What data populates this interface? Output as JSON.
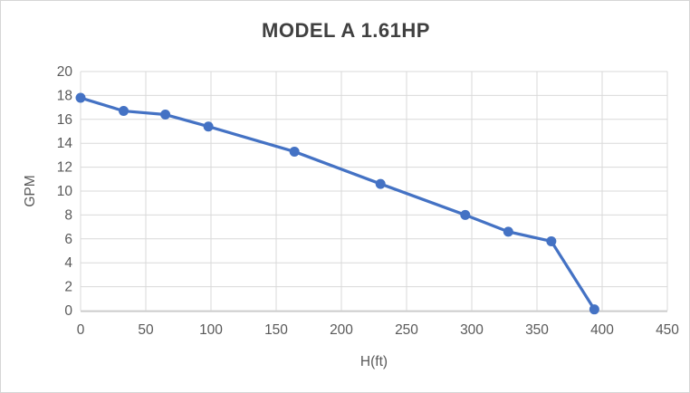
{
  "chart_data": {
    "type": "line",
    "title": "MODEL A 1.61HP",
    "xlabel": "H(ft)",
    "ylabel": "GPM",
    "series": [
      {
        "name": "MODEL A 1.61HP",
        "x": [
          0,
          33,
          65,
          98,
          164,
          230,
          295,
          328,
          361,
          394
        ],
        "y": [
          17.8,
          16.7,
          16.4,
          15.4,
          13.3,
          10.6,
          8.0,
          6.6,
          5.8,
          0.1
        ]
      }
    ],
    "xlim": [
      0,
      450
    ],
    "ylim": [
      0,
      20
    ],
    "x_ticks": [
      0,
      50,
      100,
      150,
      200,
      250,
      300,
      350,
      400,
      450
    ],
    "y_ticks": [
      0,
      2,
      4,
      6,
      8,
      10,
      12,
      14,
      16,
      18,
      20
    ],
    "grid": true,
    "legend": "none",
    "marker": "circle",
    "colors": {
      "line": "#4472C4",
      "marker": "#4472C4",
      "title_text": "#404040",
      "axis_text": "#595959",
      "gridline": "#D9D9D9",
      "axis_line": "#BFBFBF",
      "background": "#FFFFFF",
      "border": "#D6D6D6"
    }
  }
}
